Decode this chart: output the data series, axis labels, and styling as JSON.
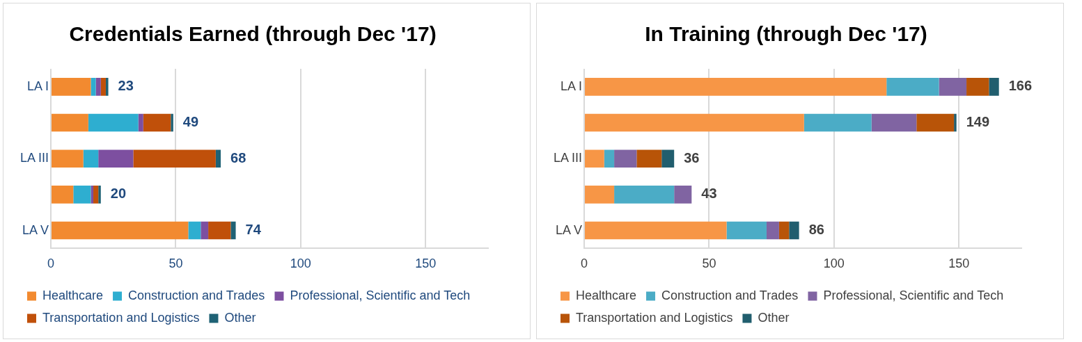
{
  "chart_data": [
    {
      "type": "bar",
      "title": "Credentials Earned (through Dec '17)",
      "orientation": "horizontal",
      "stacked": true,
      "categories": [
        "LA I",
        null,
        "LA III",
        null,
        "LA V"
      ],
      "series": [
        {
          "name": "Healthcare",
          "color": "#f28a30",
          "values": [
            16,
            15,
            13,
            9,
            55
          ]
        },
        {
          "name": "Construction and Trades",
          "color": "#2eaed0",
          "values": [
            2,
            20,
            6,
            7,
            5
          ]
        },
        {
          "name": "Professional, Scientific and Tech",
          "color": "#7d4fa0",
          "values": [
            2,
            2,
            14,
            1,
            3
          ]
        },
        {
          "name": "Transportation and Logistics",
          "color": "#c0500a",
          "values": [
            2,
            11,
            33,
            2,
            9
          ]
        },
        {
          "name": "Other",
          "color": "#1f6275",
          "values": [
            1,
            1,
            2,
            1,
            2
          ]
        }
      ],
      "totals": [
        "23",
        "49",
        "68",
        "20",
        "74"
      ],
      "xlim": [
        0,
        175
      ],
      "xticks": [
        0,
        50,
        100,
        150
      ],
      "grid": "x",
      "legend": "bottom"
    },
    {
      "type": "bar",
      "title": "In Training (through Dec '17)",
      "orientation": "horizontal",
      "stacked": true,
      "categories": [
        "LA I",
        null,
        "LA III",
        null,
        "LA V"
      ],
      "series": [
        {
          "name": "Healthcare",
          "color": "#f79646",
          "values": [
            121,
            88,
            8,
            12,
            57
          ]
        },
        {
          "name": "Construction and Trades",
          "color": "#4bacc6",
          "values": [
            21,
            27,
            4,
            24,
            16
          ]
        },
        {
          "name": "Professional, Scientific and Tech",
          "color": "#8064a2",
          "values": [
            11,
            18,
            9,
            7,
            5
          ]
        },
        {
          "name": "Transportation and Logistics",
          "color": "#b85408",
          "values": [
            9,
            15,
            10,
            0,
            4
          ]
        },
        {
          "name": "Other",
          "color": "#215e6e",
          "values": [
            4,
            1,
            5,
            0,
            4
          ]
        }
      ],
      "totals": [
        "166",
        "149",
        "36",
        "43",
        "86"
      ],
      "xlim": [
        0,
        175
      ],
      "xticks": [
        0,
        50,
        100,
        150
      ],
      "grid": "x",
      "legend": "bottom"
    }
  ]
}
